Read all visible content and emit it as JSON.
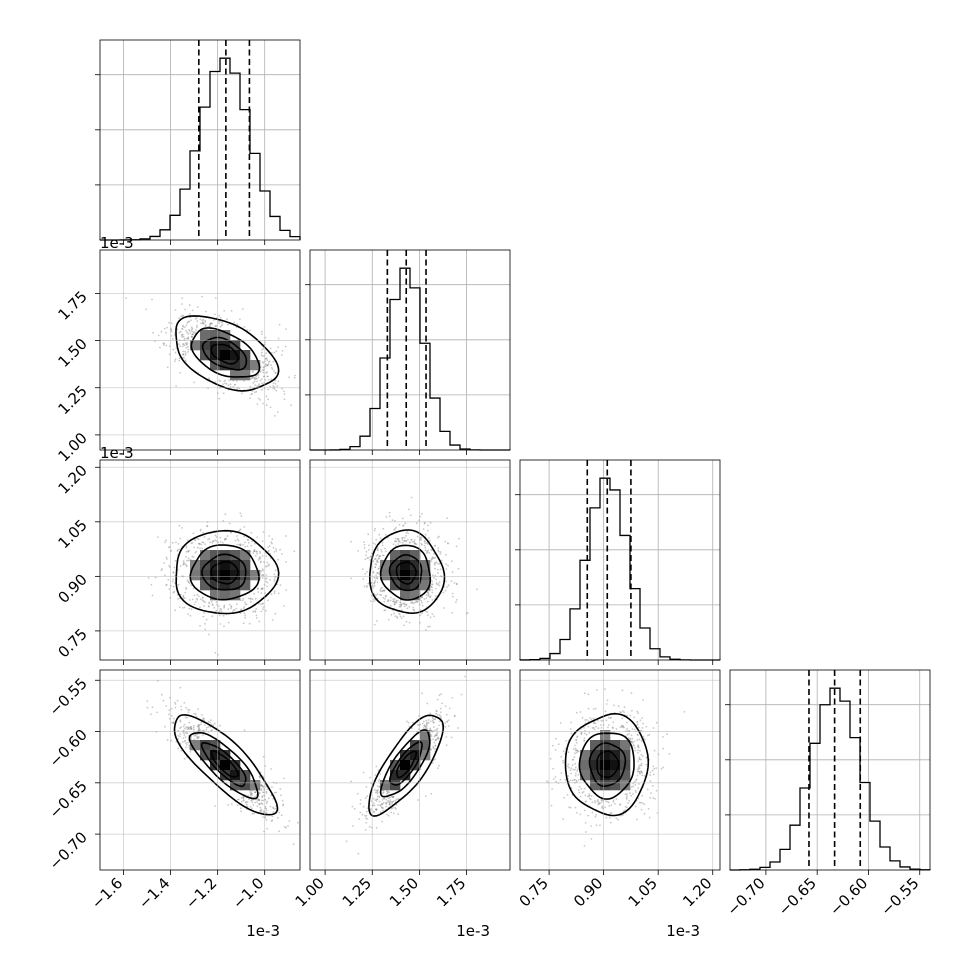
{
  "chart_data": {
    "type": "corner",
    "parameters": [
      {
        "offset_label": "1e-3",
        "mean": -1.17,
        "sd": 0.105,
        "range": [
          -1.7,
          -0.85
        ],
        "ticks": [
          -1.6,
          -1.4,
          -1.2,
          -1.0
        ],
        "tick_labels": [
          "−1.6",
          "−1.4",
          "−1.2",
          "−1.0"
        ],
        "quantiles": [
          -1.28,
          -1.165,
          -1.065
        ]
      },
      {
        "offset_label": "1e-3",
        "mean": 1.43,
        "sd": 0.095,
        "range": [
          0.92,
          1.98
        ],
        "ticks": [
          1.0,
          1.25,
          1.5,
          1.75
        ],
        "tick_labels": [
          "1.00",
          "1.25",
          "1.50",
          "1.75"
        ],
        "quantiles": [
          1.33,
          1.43,
          1.535
        ]
      },
      {
        "offset_label": "1e-3",
        "mean": 0.91,
        "sd": 0.055,
        "range": [
          0.67,
          1.22
        ],
        "ticks": [
          0.75,
          0.9,
          1.05,
          1.2
        ],
        "tick_labels": [
          "0.75",
          "0.90",
          "1.05",
          "1.20"
        ],
        "quantiles": [
          0.855,
          0.91,
          0.975
        ]
      },
      {
        "offset_label": "",
        "mean": -0.632,
        "sd": 0.0235,
        "range": [
          -0.735,
          -0.54
        ],
        "ticks": [
          -0.7,
          -0.65,
          -0.6,
          -0.55
        ],
        "tick_labels": [
          "−0.70",
          "−0.65",
          "−0.60",
          "−0.55"
        ],
        "quantiles": [
          -0.658,
          -0.633,
          -0.608
        ]
      }
    ],
    "correlations": [
      {
        "i": 1,
        "j": 0,
        "rho": -0.45
      },
      {
        "i": 2,
        "j": 0,
        "rho": 0.0
      },
      {
        "i": 2,
        "j": 1,
        "rho": -0.05
      },
      {
        "i": 3,
        "j": 0,
        "rho": -0.82
      },
      {
        "i": 3,
        "j": 1,
        "rho": 0.78
      },
      {
        "i": 3,
        "j": 2,
        "rho": 0.02
      }
    ],
    "histogram_bins": 20,
    "contour_levels_sigma": [
      0.5,
      1.0,
      1.5,
      2.0
    ],
    "grid": true,
    "samples_per_panel": 1200
  }
}
